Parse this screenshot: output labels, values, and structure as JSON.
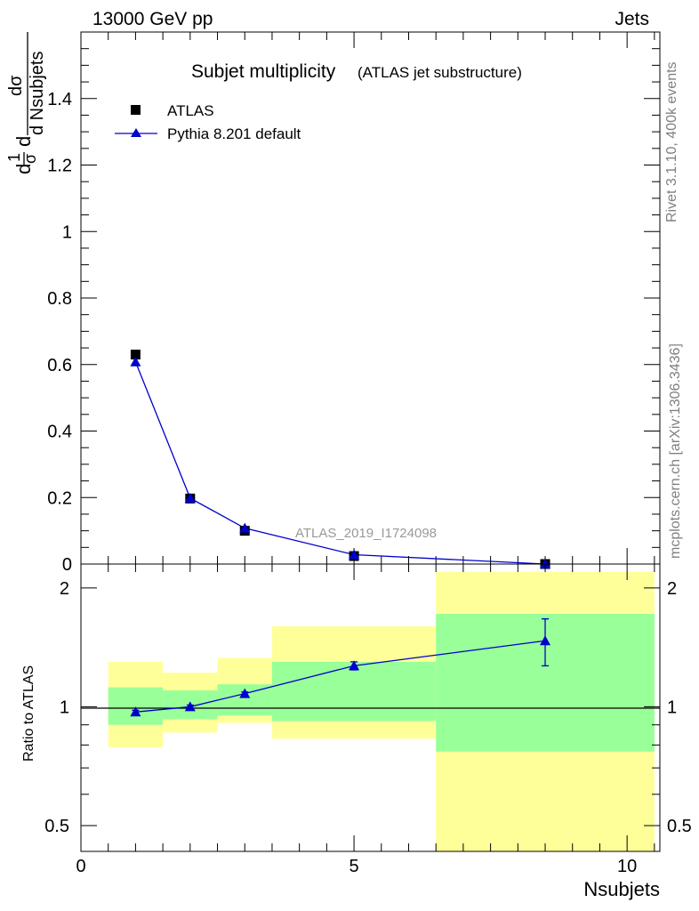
{
  "header": {
    "energy": "13000 GeV pp",
    "category": "Jets"
  },
  "side_labels": {
    "rivet": "Rivet 3.1.10,  400k events",
    "mcplots": "mcplots.cern.ch [arXiv:1306.3436]"
  },
  "chart_data": [
    {
      "type": "scatter",
      "title": "Subjet multiplicity",
      "subtitle": "(ATLAS jet substructure)",
      "watermark": "ATLAS_2019_I1724098",
      "ylabel_parts": {
        "d": "d",
        "one": "1",
        "sigma": "σ",
        "dsigma": "dσ",
        "dn": "d Nsubjets"
      },
      "xlim": [
        0,
        10.6
      ],
      "ylim": [
        0,
        1.6
      ],
      "yticks": [
        0,
        0.2,
        0.4,
        0.6,
        0.8,
        1,
        1.2,
        1.4
      ],
      "ytick_labels": [
        "0",
        "0.2",
        "0.4",
        "0.6",
        "0.8",
        "1",
        "1.2",
        "1.4"
      ],
      "legend_position": "top-left",
      "series": [
        {
          "name": "ATLAS",
          "marker": "square",
          "color": "#000000",
          "x": [
            1,
            2,
            3,
            5,
            8.5
          ],
          "y": [
            0.63,
            0.197,
            0.1,
            0.024,
            0.0
          ]
        },
        {
          "name": "Pythia 8.201 default",
          "marker": "triangle",
          "color": "#0000cc",
          "x": [
            1,
            2,
            3,
            5,
            8.5
          ],
          "y": [
            0.608,
            0.198,
            0.108,
            0.028,
            0.0
          ]
        }
      ]
    },
    {
      "type": "scatter",
      "ylabel": "Ratio to ATLAS",
      "xlabel": "Nsubjets",
      "xlim": [
        0,
        10.6
      ],
      "ylim": [
        0.43,
        2.3
      ],
      "log_y": true,
      "xticks": [
        0,
        5,
        10
      ],
      "xtick_labels": [
        "0",
        "5",
        "10"
      ],
      "yticks": [
        0.5,
        1,
        2
      ],
      "ytick_labels": [
        "0.5",
        "1",
        "2"
      ],
      "bands": [
        {
          "xmin": 0.5,
          "xmax": 1.5,
          "inner": [
            0.9,
            1.12
          ],
          "outer": [
            0.79,
            1.3
          ]
        },
        {
          "xmin": 1.5,
          "xmax": 2.5,
          "inner": [
            0.93,
            1.1
          ],
          "outer": [
            0.86,
            1.22
          ]
        },
        {
          "xmin": 2.5,
          "xmax": 3.5,
          "inner": [
            0.95,
            1.14
          ],
          "outer": [
            0.91,
            1.33
          ]
        },
        {
          "xmin": 3.5,
          "xmax": 6.5,
          "inner": [
            0.92,
            1.3
          ],
          "outer": [
            0.83,
            1.6
          ]
        },
        {
          "xmin": 6.5,
          "xmax": 10.5,
          "inner": [
            0.77,
            1.72
          ],
          "outer": [
            0.43,
            2.2
          ]
        }
      ],
      "band_colors": {
        "inner": "#99ff99",
        "outer": "#ffff99"
      },
      "series": [
        {
          "name": "Pythia 8.201 default",
          "marker": "triangle",
          "color": "#0000cc",
          "x": [
            1,
            2,
            3,
            5,
            8.5
          ],
          "y": [
            0.97,
            1.0,
            1.08,
            1.27,
            1.47
          ],
          "yerr_low": [
            0.01,
            0.01,
            0.01,
            0.03,
            0.2
          ],
          "yerr_high": [
            0.01,
            0.01,
            0.01,
            0.03,
            0.2
          ]
        }
      ]
    }
  ]
}
